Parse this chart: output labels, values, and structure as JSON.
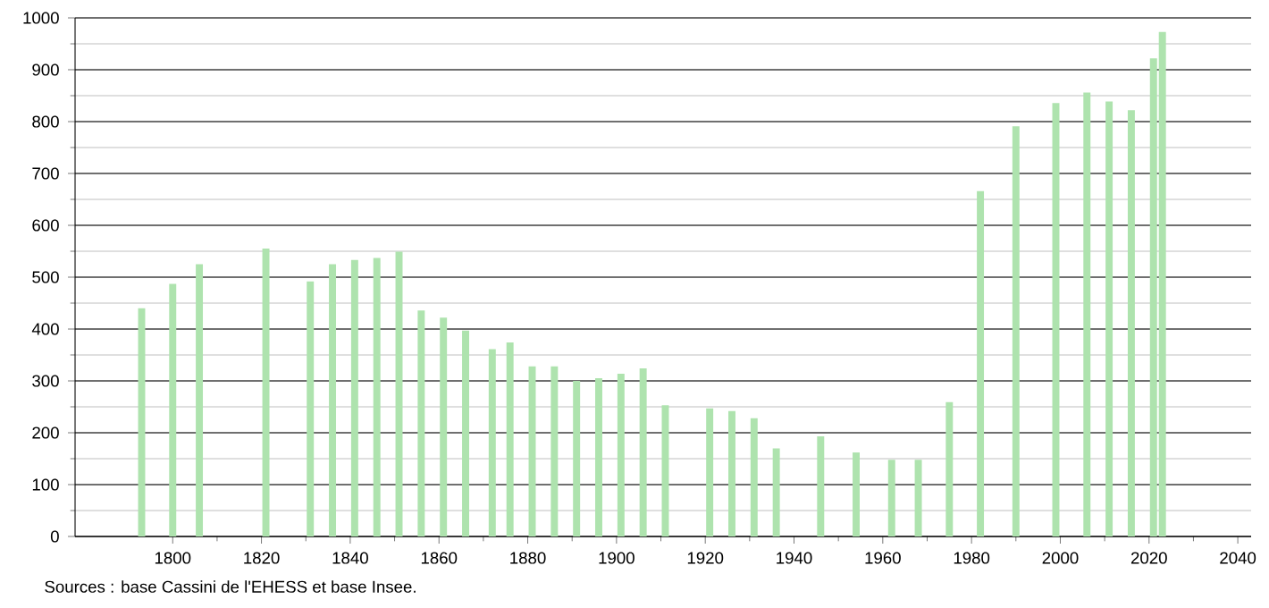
{
  "chart_data": {
    "type": "bar",
    "color": "#aee3ae",
    "x": [
      1793,
      1800,
      1806,
      1821,
      1831,
      1836,
      1841,
      1846,
      1851,
      1856,
      1861,
      1866,
      1872,
      1876,
      1881,
      1886,
      1891,
      1896,
      1901,
      1906,
      1911,
      1921,
      1926,
      1931,
      1936,
      1946,
      1954,
      1962,
      1968,
      1975,
      1982,
      1990,
      1999,
      2006,
      2011,
      2016,
      2021,
      2023
    ],
    "values": [
      440,
      487,
      525,
      555,
      492,
      525,
      533,
      537,
      549,
      436,
      422,
      397,
      361,
      374,
      328,
      328,
      300,
      305,
      314,
      324,
      253,
      247,
      242,
      228,
      170,
      193,
      162,
      148,
      148,
      259,
      666,
      791,
      836,
      856,
      839,
      822,
      922,
      973
    ],
    "xlim": [
      1778,
      2043
    ],
    "xticks": [
      1800,
      1820,
      1840,
      1860,
      1880,
      1900,
      1920,
      1940,
      1960,
      1980,
      2000,
      2020,
      2040
    ],
    "ylim": [
      0,
      1000
    ],
    "yticks": [
      0,
      100,
      200,
      300,
      400,
      500,
      600,
      700,
      800,
      900,
      1000
    ],
    "grid": "y",
    "annotations": [
      "Sources : base Cassini de l'EHESS et base Insee."
    ]
  }
}
